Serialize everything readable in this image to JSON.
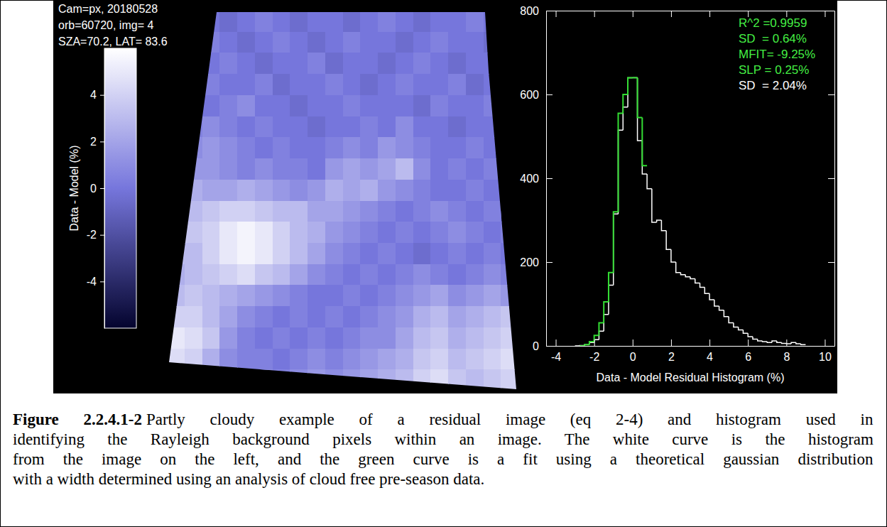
{
  "chart_data": [
    {
      "type": "heatmap",
      "annotations": [
        "Cam=px, 20180528",
        "orb=60720, img= 4",
        "SZA=70.2, LAT= 83.6"
      ],
      "colorbar": {
        "title": "Data - Model (%)",
        "range": [
          -6,
          6
        ],
        "ticks": [
          -4,
          -2,
          0,
          2,
          4
        ]
      },
      "cells": [
        [
          null,
          null,
          0,
          -0.5,
          0,
          0.5,
          0,
          -0.5,
          0,
          0,
          -0.5,
          0,
          0.5,
          0,
          -0.5,
          0,
          0,
          0.5,
          0,
          null
        ],
        [
          null,
          null,
          0.5,
          0,
          -0.5,
          0,
          0.5,
          0,
          -0.5,
          0,
          0.5,
          0,
          0,
          -0.5,
          0,
          0.5,
          0,
          0,
          -0.5,
          null
        ],
        [
          null,
          null,
          0,
          0.5,
          0,
          -0.5,
          0,
          0,
          0.5,
          -0.5,
          0,
          0,
          -0.5,
          0,
          0.5,
          0,
          -0.5,
          0,
          0,
          null
        ],
        [
          null,
          null,
          0.5,
          0,
          0,
          0.5,
          -0.5,
          0,
          0,
          0.5,
          0,
          -0.5,
          0,
          0.5,
          0,
          0,
          0.5,
          -0.5,
          0,
          null
        ],
        [
          null,
          null,
          0,
          0.5,
          1,
          0,
          0,
          -0.5,
          0,
          0,
          0.5,
          0,
          0,
          0,
          -0.5,
          0.5,
          0,
          0,
          0.5,
          null
        ],
        [
          null,
          0.5,
          1,
          0.5,
          0,
          0.5,
          0,
          0,
          -0.5,
          0,
          0,
          0.5,
          0,
          1,
          0,
          0,
          -0.5,
          0,
          0,
          null
        ],
        [
          null,
          1,
          1.5,
          1,
          0.5,
          0,
          0.5,
          0,
          0,
          0.5,
          1,
          0.5,
          1.5,
          1,
          0.5,
          0,
          0,
          0.5,
          0,
          null
        ],
        [
          null,
          1.5,
          1.5,
          1,
          0.5,
          1,
          0.5,
          0.5,
          0,
          1.5,
          2,
          1.5,
          2,
          3,
          1,
          0,
          0.5,
          0,
          0.5,
          null
        ],
        [
          null,
          2.5,
          2,
          2,
          2.5,
          2,
          1.5,
          1,
          1.5,
          2.5,
          2,
          2.5,
          1.5,
          1,
          0.5,
          0,
          0,
          0.5,
          0,
          null
        ],
        [
          null,
          3,
          3.5,
          4,
          4,
          3.5,
          3,
          3,
          2,
          2,
          1.5,
          1,
          0.5,
          0,
          0.5,
          1,
          0.5,
          0,
          0.5,
          0
        ],
        [
          null,
          3.5,
          4,
          5,
          5.5,
          5,
          4,
          3,
          2.5,
          1.5,
          1,
          0.5,
          0,
          0.5,
          0,
          0.5,
          1,
          0.5,
          0,
          0.5
        ],
        [
          3,
          3,
          4,
          5,
          5.5,
          5,
          4,
          3,
          2,
          1,
          0.5,
          0,
          0.5,
          0,
          -0.5,
          0,
          0.5,
          0,
          0.5,
          0
        ],
        [
          2.5,
          3,
          3.5,
          4,
          4.5,
          3.5,
          3,
          2,
          1,
          0.5,
          0,
          0.5,
          0,
          0.5,
          1,
          0.5,
          0,
          0.5,
          1,
          0.5
        ],
        [
          3,
          3.5,
          3,
          2.5,
          2,
          1.5,
          1,
          0.5,
          0,
          0,
          0.5,
          0,
          0.5,
          1,
          1.5,
          2,
          1,
          1.5,
          2,
          1.5
        ],
        [
          4,
          4,
          3,
          2,
          1,
          0.5,
          0,
          0.5,
          0,
          0.5,
          0,
          0.5,
          1,
          1.5,
          2.5,
          3,
          2,
          2.5,
          3,
          3.5
        ],
        [
          5,
          4.5,
          3.5,
          1.5,
          0.5,
          0,
          0.5,
          0,
          0.5,
          0,
          0.5,
          1,
          1,
          2,
          3,
          3.5,
          2.5,
          3,
          3.5,
          4
        ],
        [
          4.5,
          4,
          2.5,
          1,
          0.5,
          0.5,
          0,
          0.5,
          1,
          0.5,
          1,
          1.5,
          2,
          2.5,
          3.5,
          4,
          3,
          3.5,
          4,
          4.5
        ],
        [
          null,
          null,
          null,
          null,
          null,
          1,
          0.5,
          1,
          1.5,
          1,
          1.5,
          2,
          2.5,
          3,
          4,
          4.5,
          3.5,
          3,
          3.5,
          4
        ]
      ]
    },
    {
      "type": "histogram",
      "xlabel": "Data - Model Residual Histogram (%)",
      "xlim": [
        -4.5,
        10.5
      ],
      "xticks": [
        -4,
        -2,
        0,
        2,
        4,
        6,
        8,
        10
      ],
      "ylim": [
        0,
        800
      ],
      "yticks": [
        0,
        200,
        400,
        600,
        800
      ],
      "series": [
        {
          "color": "#ffffff",
          "bins": [
            -3,
            -2.75,
            -2.5,
            -2.25,
            -2,
            -1.75,
            -1.5,
            -1.25,
            -1,
            -0.75,
            -0.5,
            -0.25,
            0,
            0.25,
            0.5,
            0.75,
            1,
            1.25,
            1.5,
            1.75,
            2,
            2.25,
            2.5,
            2.75,
            3,
            3.25,
            3.5,
            3.75,
            4,
            4.25,
            4.5,
            4.75,
            5,
            5.25,
            5.5,
            5.75,
            6,
            6.25,
            6.5,
            6.75,
            7,
            7.25,
            7.5,
            7.75,
            8,
            8.25,
            8.5,
            8.75,
            9
          ],
          "values": [
            0,
            1,
            3,
            8,
            15,
            35,
            75,
            145,
            315,
            515,
            570,
            640,
            640,
            490,
            410,
            375,
            295,
            300,
            275,
            230,
            200,
            175,
            170,
            165,
            160,
            150,
            140,
            125,
            110,
            95,
            85,
            70,
            55,
            45,
            38,
            30,
            22,
            16,
            12,
            10,
            8,
            12,
            8,
            6,
            5,
            8,
            5,
            3
          ]
        },
        {
          "color": "#33dd33",
          "bins": [
            -2.75,
            -2.5,
            -2.25,
            -2,
            -1.75,
            -1.5,
            -1.25,
            -1,
            -0.75,
            -0.5,
            -0.25,
            0,
            0.25,
            0.5,
            0.75
          ],
          "values": [
            0,
            3,
            10,
            25,
            55,
            105,
            175,
            320,
            555,
            600,
            640,
            640,
            545,
            430
          ]
        }
      ],
      "annotations": [
        {
          "text": "R^2 =0.9959",
          "color": "#44ee44"
        },
        {
          "text": "SD  = 0.64%",
          "color": "#44ee44"
        },
        {
          "text": "MFIT= -9.25%",
          "color": "#44ee44"
        },
        {
          "text": "SLP = 0.25%",
          "color": "#44ee44"
        },
        {
          "text": "SD  = 2.04%",
          "color": "#ffffff"
        }
      ]
    }
  ],
  "caption": {
    "label": "Figure 2.2.4.1-2",
    "lines": [
      "Partly cloudy example of a residual image (eq 2-4) and histogram used in",
      "identifying the Rayleigh background pixels within an image. The white curve is the histogram",
      "from the image on the left, and the green curve is a fit using a theoretical gaussian distribution",
      "with a width determined using an analysis of cloud free pre-season data."
    ]
  }
}
